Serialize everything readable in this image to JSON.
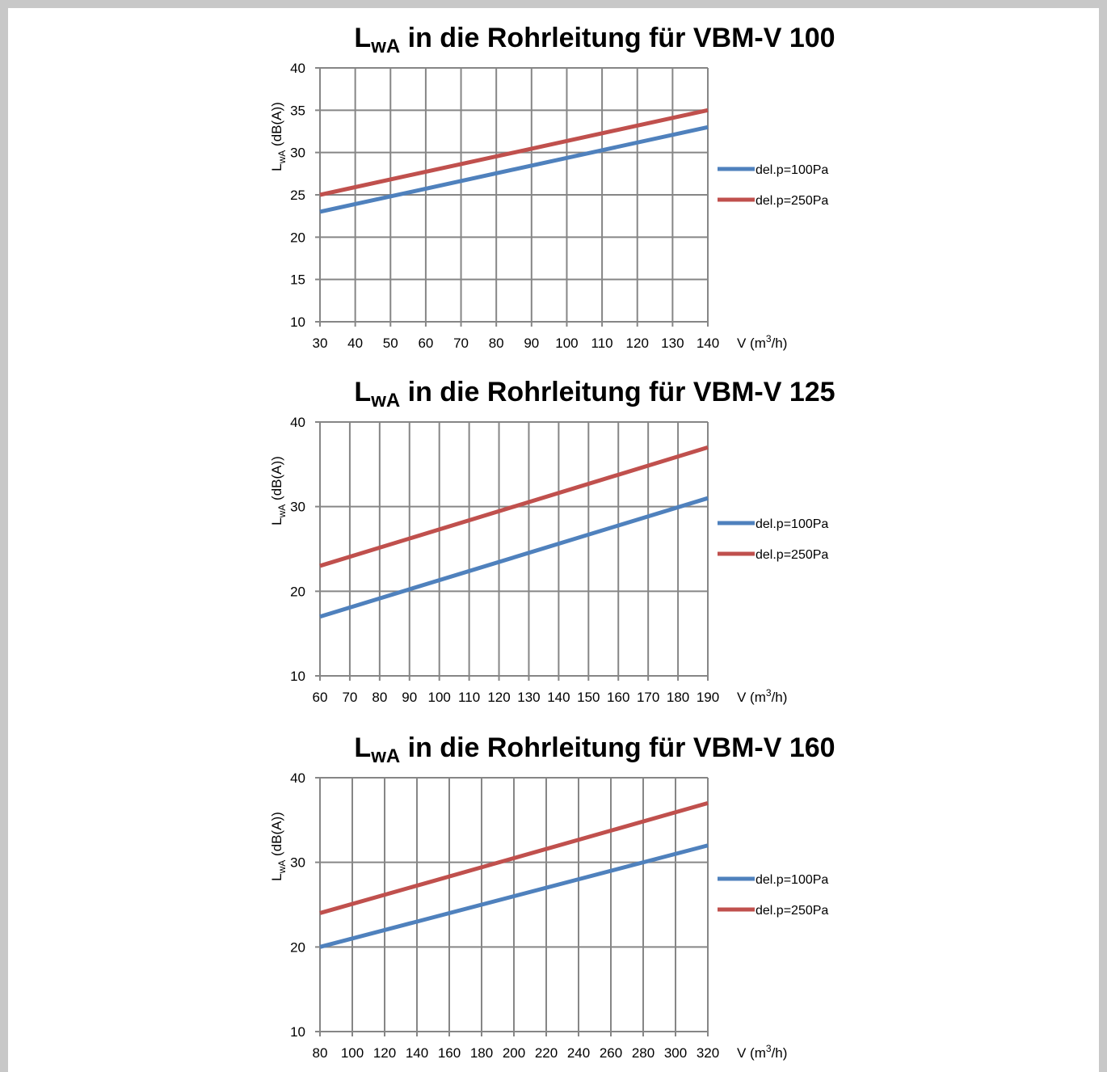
{
  "chart_data": [
    {
      "type": "line",
      "title_main": "L",
      "title_sub": "wA",
      "title_rest": " in die Rohrleitung für VBM-V 100",
      "ylabel_main": "L",
      "ylabel_sub": "wA",
      "ylabel_rest": " (dB(A))",
      "xlabel_pre": "V (m",
      "xlabel_sup": "3",
      "xlabel_post": "/h)",
      "x_ticks": [
        30,
        40,
        50,
        60,
        70,
        80,
        90,
        100,
        110,
        120,
        130,
        140
      ],
      "y_ticks": [
        10,
        15,
        20,
        25,
        30,
        35,
        40
      ],
      "xlim": [
        30,
        140
      ],
      "ylim": [
        10,
        40
      ],
      "grid": true,
      "legend_position": "right",
      "series": [
        {
          "name": "del.p=100Pa",
          "color": "#4f81bd",
          "x": [
            30,
            140
          ],
          "y": [
            23,
            33
          ]
        },
        {
          "name": "del.p=250Pa",
          "color": "#c0504d",
          "x": [
            30,
            140
          ],
          "y": [
            25,
            35
          ]
        }
      ]
    },
    {
      "type": "line",
      "title_main": "L",
      "title_sub": "wA",
      "title_rest": " in die Rohrleitung für VBM-V 125",
      "ylabel_main": "L",
      "ylabel_sub": "wA",
      "ylabel_rest": " (dB(A))",
      "xlabel_pre": "V (m",
      "xlabel_sup": "3",
      "xlabel_post": "/h)",
      "x_ticks": [
        60,
        70,
        80,
        90,
        100,
        110,
        120,
        130,
        140,
        150,
        160,
        170,
        180,
        190
      ],
      "y_ticks": [
        10,
        20,
        30,
        40
      ],
      "xlim": [
        60,
        190
      ],
      "ylim": [
        10,
        40
      ],
      "grid": true,
      "legend_position": "right",
      "series": [
        {
          "name": "del.p=100Pa",
          "color": "#4f81bd",
          "x": [
            60,
            190
          ],
          "y": [
            17,
            31
          ]
        },
        {
          "name": "del.p=250Pa",
          "color": "#c0504d",
          "x": [
            60,
            190
          ],
          "y": [
            23,
            37
          ]
        }
      ]
    },
    {
      "type": "line",
      "title_main": "L",
      "title_sub": "wA",
      "title_rest": " in die Rohrleitung für VBM-V 160",
      "ylabel_main": "L",
      "ylabel_sub": "wA",
      "ylabel_rest": " (dB(A))",
      "xlabel_pre": "V (m",
      "xlabel_sup": "3",
      "xlabel_post": "/h)",
      "x_ticks": [
        80,
        100,
        120,
        140,
        160,
        180,
        200,
        220,
        240,
        260,
        280,
        300,
        320
      ],
      "y_ticks": [
        10,
        20,
        30,
        40
      ],
      "xlim": [
        80,
        320
      ],
      "ylim": [
        10,
        40
      ],
      "grid": true,
      "legend_position": "right",
      "series": [
        {
          "name": "del.p=100Pa",
          "color": "#4f81bd",
          "x": [
            80,
            320
          ],
          "y": [
            20,
            32
          ]
        },
        {
          "name": "del.p=250Pa",
          "color": "#c0504d",
          "x": [
            80,
            320
          ],
          "y": [
            24,
            37
          ]
        }
      ]
    }
  ]
}
